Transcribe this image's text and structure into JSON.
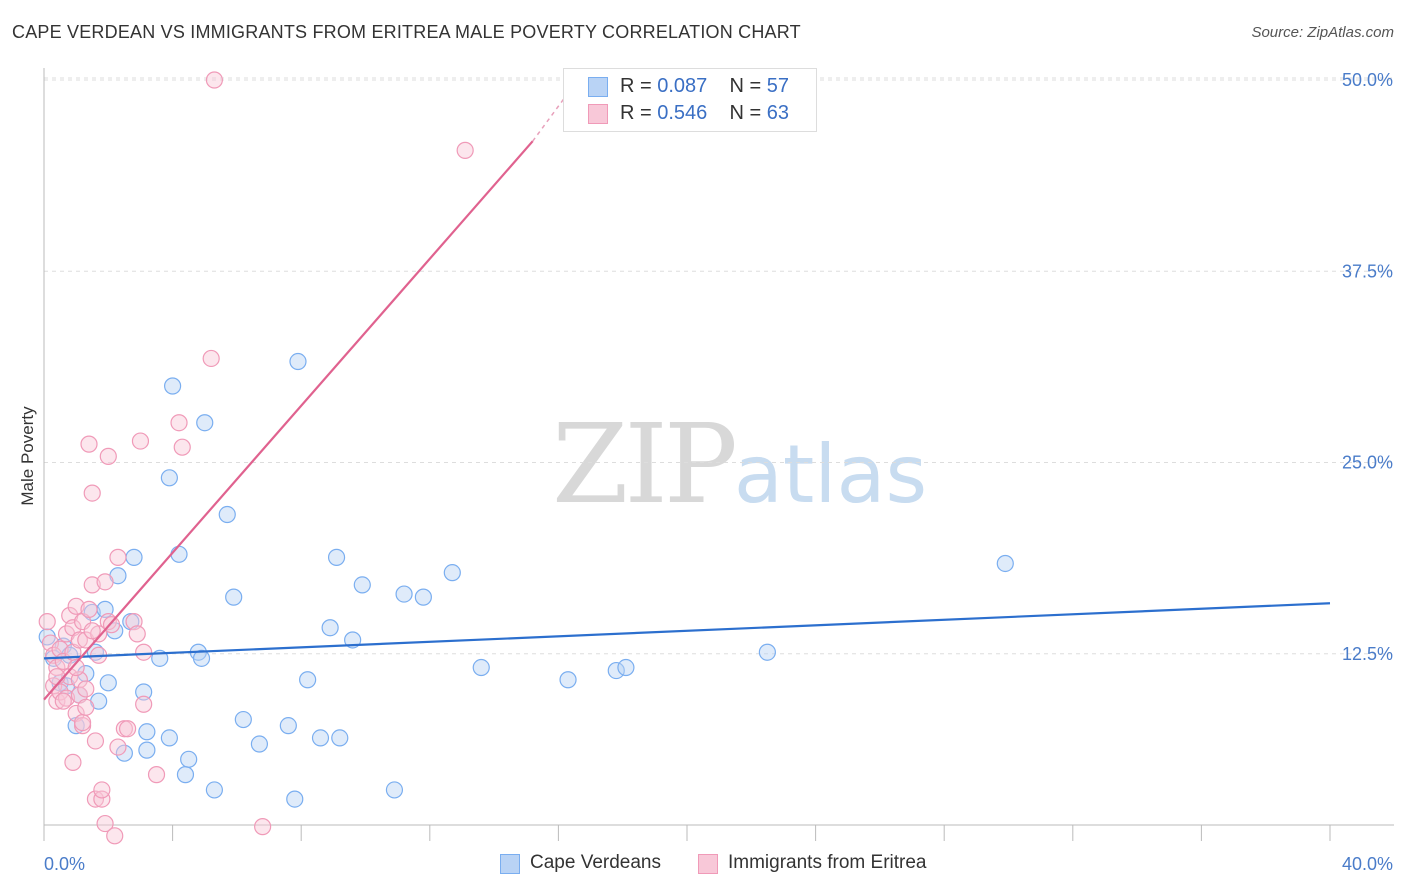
{
  "title": "CAPE VERDEAN VS IMMIGRANTS FROM ERITREA MALE POVERTY CORRELATION CHART",
  "source": "Source: ZipAtlas.com",
  "watermark": {
    "zip": "ZIP",
    "atlas": "atlas"
  },
  "legend": {
    "series": [
      {
        "r_label": "R = ",
        "r_value": "0.087",
        "n_label": "N = ",
        "n_value": "57"
      },
      {
        "r_label": "R = ",
        "r_value": "0.546",
        "n_label": "N = ",
        "n_value": "63"
      }
    ]
  },
  "bottom_legend": [
    "Cape Verdeans",
    "Immigrants from Eritrea"
  ],
  "chart_data": {
    "type": "scatter",
    "title": "CAPE VERDEAN VS IMMIGRANTS FROM ERITREA MALE POVERTY CORRELATION CHART",
    "xlabel": "",
    "ylabel": "Male Poverty",
    "xlim": [
      0,
      40
    ],
    "ylim": [
      0,
      52
    ],
    "x_tick_labels": [
      {
        "value": 0,
        "label": "0.0%"
      },
      {
        "value": 40,
        "label": "40.0%"
      }
    ],
    "y_tick_labels": [
      {
        "value": 12.5,
        "label": "12.5%"
      },
      {
        "value": 25,
        "label": "25.0%"
      },
      {
        "value": 37.5,
        "label": "37.5%"
      },
      {
        "value": 50,
        "label": "50.0%"
      }
    ],
    "x_minor_ticks": [
      0,
      4,
      8,
      12,
      16,
      20,
      24,
      28,
      32,
      36,
      40
    ],
    "grid": true,
    "series": [
      {
        "name": "Cape Verdeans",
        "color": "#7aaef0",
        "fill": "#b9d3f5",
        "trend": {
          "x": [
            0,
            40
          ],
          "y": [
            12.2,
            15.8
          ],
          "color": "#2c6fce"
        },
        "points": [
          [
            0.1,
            13.6
          ],
          [
            0.3,
            12.2
          ],
          [
            0.5,
            10.6
          ],
          [
            0.6,
            13.0
          ],
          [
            0.7,
            10.4
          ],
          [
            0.8,
            12.4
          ],
          [
            1.0,
            7.8
          ],
          [
            1.1,
            9.8
          ],
          [
            1.3,
            11.2
          ],
          [
            1.5,
            15.2
          ],
          [
            1.6,
            12.6
          ],
          [
            1.7,
            9.4
          ],
          [
            1.9,
            15.4
          ],
          [
            2.0,
            10.6
          ],
          [
            2.2,
            14.0
          ],
          [
            2.3,
            17.6
          ],
          [
            2.5,
            6.0
          ],
          [
            2.7,
            14.6
          ],
          [
            2.8,
            18.8
          ],
          [
            3.1,
            10.0
          ],
          [
            3.2,
            7.4
          ],
          [
            3.2,
            6.2
          ],
          [
            3.6,
            12.2
          ],
          [
            3.9,
            7.0
          ],
          [
            3.9,
            24.0
          ],
          [
            4.0,
            30.0
          ],
          [
            4.2,
            19.0
          ],
          [
            4.4,
            4.6
          ],
          [
            4.5,
            5.6
          ],
          [
            4.8,
            12.6
          ],
          [
            4.9,
            12.2
          ],
          [
            5.0,
            27.6
          ],
          [
            5.3,
            3.6
          ],
          [
            5.7,
            21.6
          ],
          [
            5.9,
            16.2
          ],
          [
            6.2,
            8.2
          ],
          [
            6.7,
            6.6
          ],
          [
            7.6,
            7.8
          ],
          [
            7.8,
            3.0
          ],
          [
            7.9,
            31.6
          ],
          [
            8.2,
            10.8
          ],
          [
            8.6,
            7.0
          ],
          [
            8.9,
            14.2
          ],
          [
            9.2,
            7.0
          ],
          [
            9.1,
            18.8
          ],
          [
            9.6,
            13.4
          ],
          [
            9.9,
            17.0
          ],
          [
            10.9,
            3.6
          ],
          [
            11.2,
            16.4
          ],
          [
            11.8,
            16.2
          ],
          [
            12.7,
            17.8
          ],
          [
            13.6,
            11.6
          ],
          [
            16.3,
            10.8
          ],
          [
            17.8,
            11.4
          ],
          [
            18.1,
            11.6
          ],
          [
            22.5,
            12.6
          ],
          [
            29.9,
            18.4
          ]
        ]
      },
      {
        "name": "Immigrants from Eritrea",
        "color": "#f09ab8",
        "fill": "#f8c8d8",
        "trend": {
          "x": [
            0,
            15.2
          ],
          "y": [
            9.5,
            46.0
          ],
          "dashed_to": [
            16.6,
            50.0
          ],
          "color": "#e0628f"
        },
        "points": [
          [
            0.1,
            14.6
          ],
          [
            0.2,
            13.2
          ],
          [
            0.3,
            10.4
          ],
          [
            0.3,
            12.4
          ],
          [
            0.4,
            9.4
          ],
          [
            0.4,
            11.6
          ],
          [
            0.5,
            12.8
          ],
          [
            0.5,
            10.0
          ],
          [
            0.6,
            12.0
          ],
          [
            0.7,
            13.8
          ],
          [
            0.7,
            9.6
          ],
          [
            0.8,
            15.0
          ],
          [
            0.8,
            11.0
          ],
          [
            0.9,
            14.2
          ],
          [
            0.9,
            12.6
          ],
          [
            0.9,
            5.4
          ],
          [
            1.0,
            8.6
          ],
          [
            1.0,
            15.6
          ],
          [
            1.1,
            10.8
          ],
          [
            1.1,
            13.4
          ],
          [
            1.1,
            9.8
          ],
          [
            1.2,
            7.8
          ],
          [
            1.2,
            14.6
          ],
          [
            1.2,
            8.0
          ],
          [
            1.3,
            13.4
          ],
          [
            1.3,
            9.0
          ],
          [
            1.3,
            10.2
          ],
          [
            1.4,
            15.4
          ],
          [
            1.4,
            26.2
          ],
          [
            1.5,
            17.0
          ],
          [
            1.5,
            23.0
          ],
          [
            1.6,
            6.8
          ],
          [
            1.6,
            3.0
          ],
          [
            1.7,
            13.8
          ],
          [
            1.7,
            12.4
          ],
          [
            1.8,
            3.0
          ],
          [
            1.8,
            3.6
          ],
          [
            1.9,
            1.4
          ],
          [
            1.9,
            17.2
          ],
          [
            2.0,
            14.6
          ],
          [
            2.0,
            25.4
          ],
          [
            2.1,
            14.4
          ],
          [
            2.2,
            0.6
          ],
          [
            2.3,
            18.8
          ],
          [
            2.3,
            6.4
          ],
          [
            2.5,
            7.6
          ],
          [
            2.6,
            7.6
          ],
          [
            2.8,
            14.6
          ],
          [
            2.9,
            13.8
          ],
          [
            3.0,
            26.4
          ],
          [
            3.1,
            9.2
          ],
          [
            3.1,
            12.6
          ],
          [
            3.5,
            4.6
          ],
          [
            4.2,
            27.6
          ],
          [
            4.3,
            26.0
          ],
          [
            5.2,
            31.8
          ],
          [
            5.3,
            50.0
          ],
          [
            6.8,
            1.2
          ],
          [
            13.1,
            45.4
          ],
          [
            0.4,
            11.0
          ],
          [
            0.6,
            9.4
          ],
          [
            1.0,
            11.6
          ],
          [
            1.5,
            14.0
          ]
        ]
      }
    ]
  }
}
